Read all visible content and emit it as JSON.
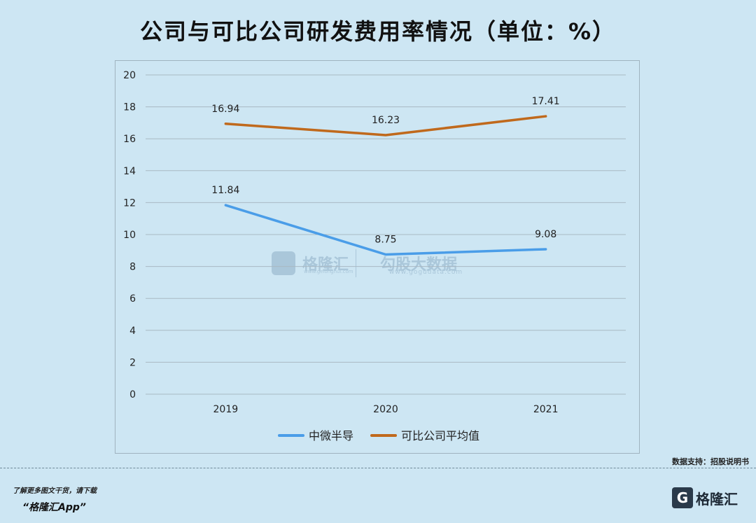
{
  "title": "公司与可比公司研发费用率情况（单位：%）",
  "source_note": "数据支持：招股说明书",
  "footer": {
    "tip": "了解更多图文干货，请下载",
    "app": "“格隆汇App”"
  },
  "brand": {
    "logo_letter": "G",
    "name": "格隆汇"
  },
  "watermark": {
    "name1": "格隆汇",
    "sub1": "www.gelonghui.com",
    "name2": "勾股大数据",
    "sub2": "www.gogudata.com"
  },
  "colors": {
    "background": "#cde6f3",
    "series1": "#4a9de8",
    "series2": "#c0691c",
    "grid": "#a9b9c3"
  },
  "chart_data": {
    "type": "line",
    "title": "公司与可比公司研发费用率情况（单位：%）",
    "x": [
      "2019",
      "2020",
      "2021"
    ],
    "series": [
      {
        "name": "中微半导",
        "values": [
          11.84,
          8.75,
          9.08
        ],
        "labels": [
          "11.84",
          "8.75",
          "9.08"
        ],
        "color": "#4a9de8"
      },
      {
        "name": "可比公司平均值",
        "values": [
          16.94,
          16.23,
          17.41
        ],
        "labels": [
          "16.94",
          "16.23",
          "17.41"
        ],
        "color": "#c0691c"
      }
    ],
    "ylim": [
      0,
      20
    ],
    "yticks": [
      "0",
      "2",
      "4",
      "6",
      "8",
      "10",
      "12",
      "14",
      "16",
      "18",
      "20"
    ],
    "grid": true,
    "legend": "bottom"
  }
}
